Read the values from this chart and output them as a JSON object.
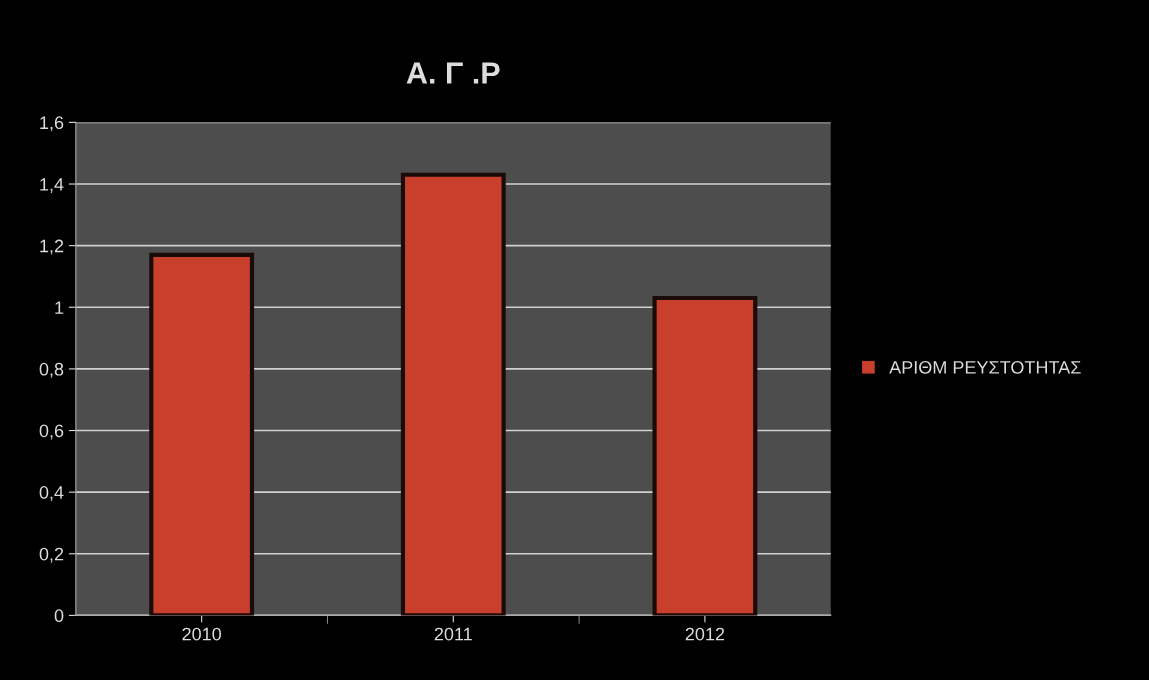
{
  "chart_data": {
    "type": "bar",
    "title": "Α. Γ .Ρ",
    "categories": [
      "2010",
      "2011",
      "2012"
    ],
    "series": [
      {
        "name": "ΑΡΙΘΜ ΡΕΥΣΤΟΤΗΤΑΣ",
        "color": "#c8402c",
        "values": [
          1.17,
          1.43,
          1.03
        ]
      }
    ],
    "ylim": [
      0,
      1.6
    ],
    "yticks": [
      0,
      {
        "value": 0.2,
        "label": "0,2"
      },
      {
        "value": 0.4,
        "label": "0,4"
      },
      {
        "value": 0.6,
        "label": "0,6"
      },
      {
        "value": 0.8,
        "label": "0,8"
      },
      1,
      {
        "value": 1.2,
        "label": "1,2"
      },
      {
        "value": 1.4,
        "label": "1,4"
      },
      {
        "value": 1.6,
        "label": "1,6"
      }
    ],
    "grid": "y",
    "legend": "right"
  }
}
